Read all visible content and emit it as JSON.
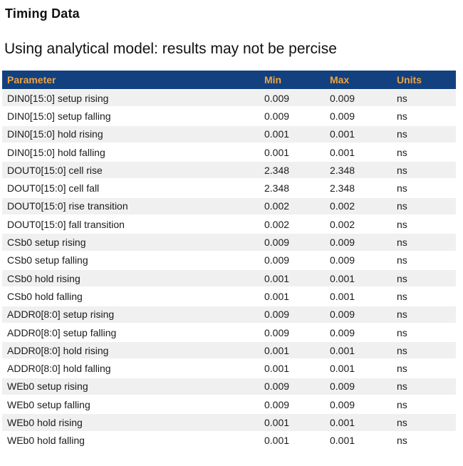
{
  "page": {
    "title": "Timing Data",
    "subtitle": "Using analytical model: results may not be percise"
  },
  "table": {
    "columns": [
      "Parameter",
      "Min",
      "Max",
      "Units"
    ],
    "rows": [
      {
        "parameter": "DIN0[15:0] setup rising",
        "min": "0.009",
        "max": "0.009",
        "units": "ns"
      },
      {
        "parameter": "DIN0[15:0] setup falling",
        "min": "0.009",
        "max": "0.009",
        "units": "ns"
      },
      {
        "parameter": "DIN0[15:0] hold rising",
        "min": "0.001",
        "max": "0.001",
        "units": "ns"
      },
      {
        "parameter": "DIN0[15:0] hold falling",
        "min": "0.001",
        "max": "0.001",
        "units": "ns"
      },
      {
        "parameter": "DOUT0[15:0] cell rise",
        "min": "2.348",
        "max": "2.348",
        "units": "ns"
      },
      {
        "parameter": "DOUT0[15:0] cell fall",
        "min": "2.348",
        "max": "2.348",
        "units": "ns"
      },
      {
        "parameter": "DOUT0[15:0] rise transition",
        "min": "0.002",
        "max": "0.002",
        "units": "ns"
      },
      {
        "parameter": "DOUT0[15:0] fall transition",
        "min": "0.002",
        "max": "0.002",
        "units": "ns"
      },
      {
        "parameter": "CSb0 setup rising",
        "min": "0.009",
        "max": "0.009",
        "units": "ns"
      },
      {
        "parameter": "CSb0 setup falling",
        "min": "0.009",
        "max": "0.009",
        "units": "ns"
      },
      {
        "parameter": "CSb0 hold rising",
        "min": "0.001",
        "max": "0.001",
        "units": "ns"
      },
      {
        "parameter": "CSb0 hold falling",
        "min": "0.001",
        "max": "0.001",
        "units": "ns"
      },
      {
        "parameter": "ADDR0[8:0] setup rising",
        "min": "0.009",
        "max": "0.009",
        "units": "ns"
      },
      {
        "parameter": "ADDR0[8:0] setup falling",
        "min": "0.009",
        "max": "0.009",
        "units": "ns"
      },
      {
        "parameter": "ADDR0[8:0] hold rising",
        "min": "0.001",
        "max": "0.001",
        "units": "ns"
      },
      {
        "parameter": "ADDR0[8:0] hold falling",
        "min": "0.001",
        "max": "0.001",
        "units": "ns"
      },
      {
        "parameter": "WEb0 setup rising",
        "min": "0.009",
        "max": "0.009",
        "units": "ns"
      },
      {
        "parameter": "WEb0 setup falling",
        "min": "0.009",
        "max": "0.009",
        "units": "ns"
      },
      {
        "parameter": "WEb0 hold rising",
        "min": "0.001",
        "max": "0.001",
        "units": "ns"
      },
      {
        "parameter": "WEb0 hold falling",
        "min": "0.001",
        "max": "0.001",
        "units": "ns"
      }
    ]
  },
  "colors": {
    "header_bg": "#134180",
    "header_text": "#F1A33C",
    "row_alt_bg": "#F0F0F1",
    "row_text": "#1B1B1B"
  }
}
